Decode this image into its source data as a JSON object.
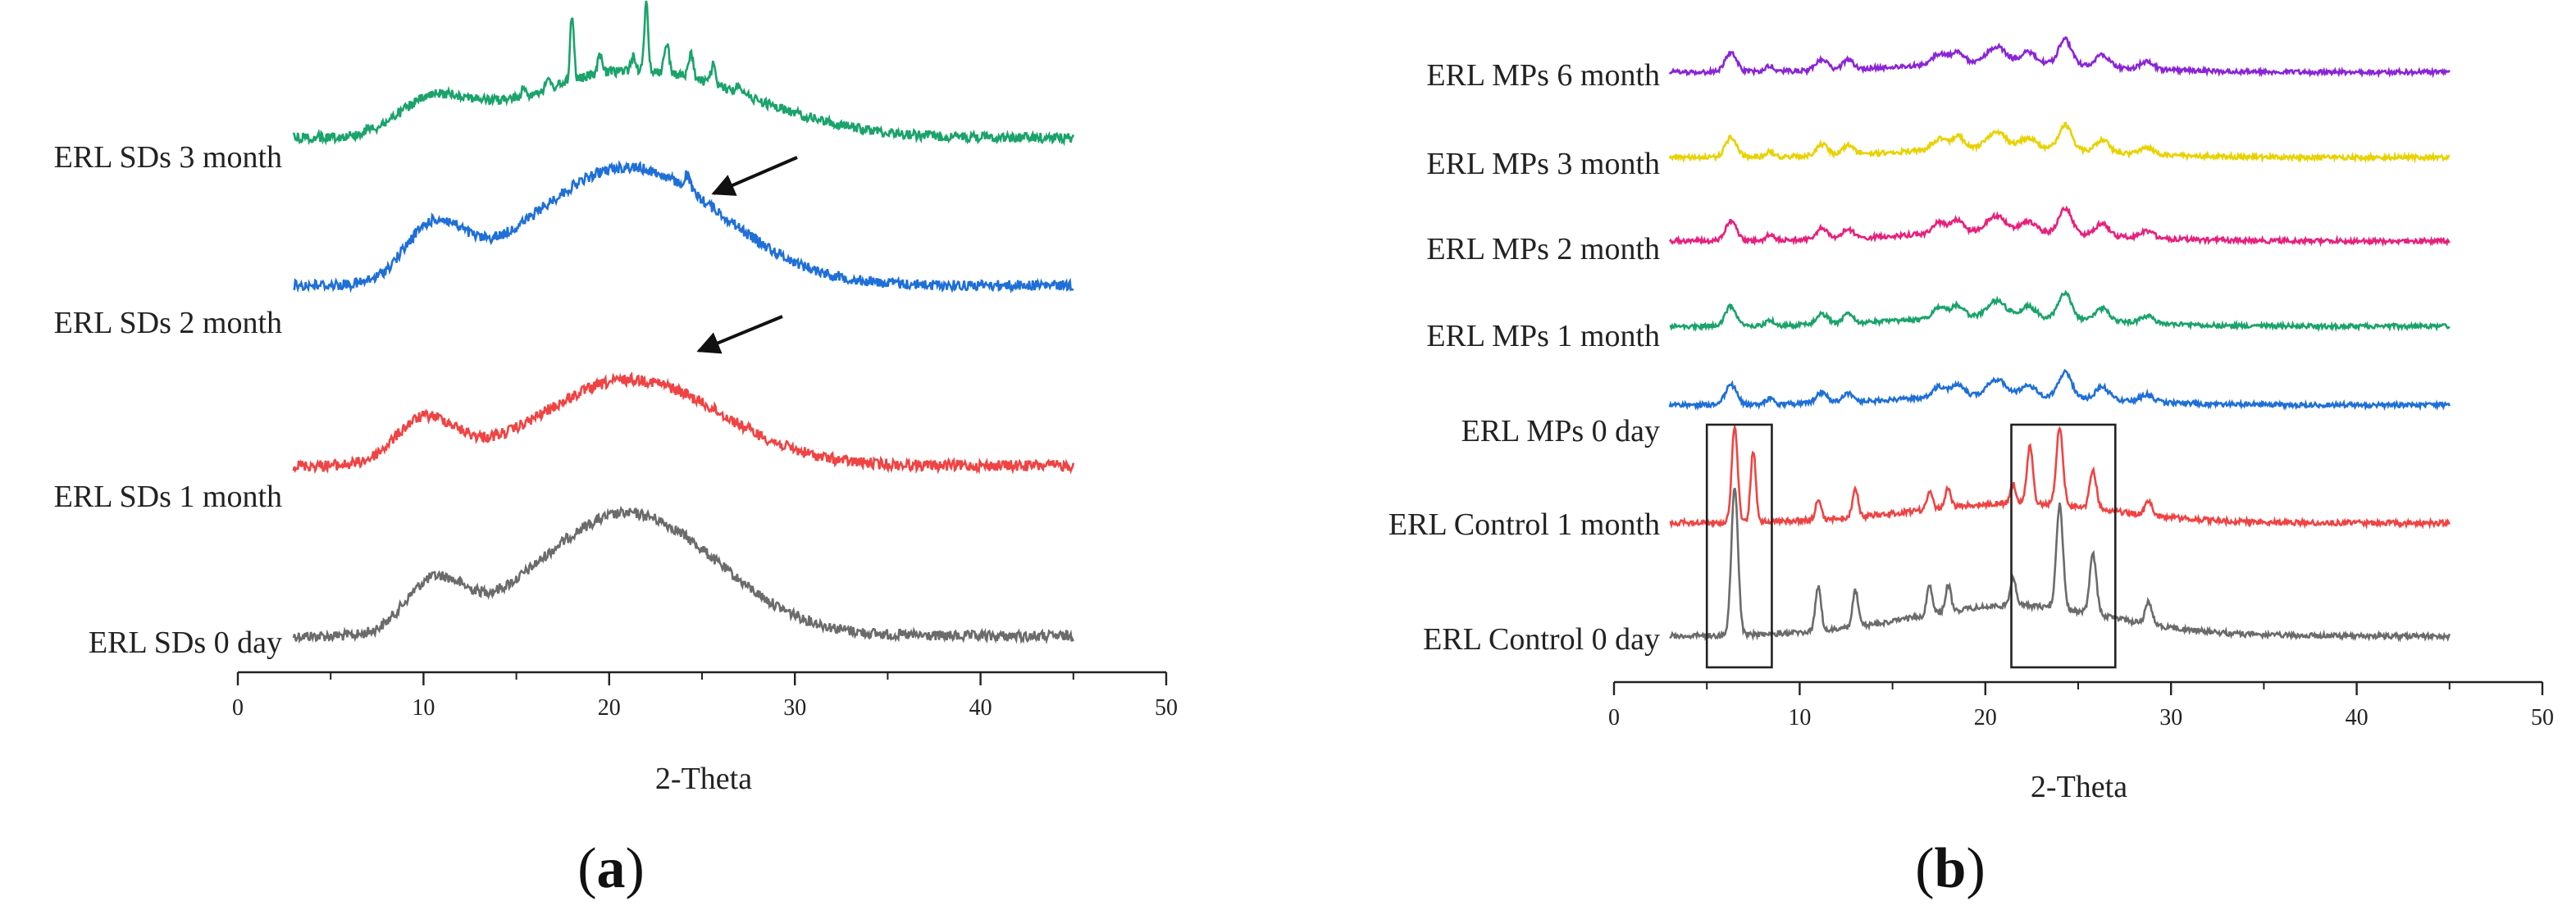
{
  "panels": {
    "a": {
      "letter": "a",
      "open": "(",
      "close": ")"
    },
    "b": {
      "letter": "b",
      "open": "(",
      "close": ")"
    }
  },
  "chart_data": [
    {
      "type": "line",
      "title": "",
      "xlabel": "2-Theta",
      "ylabel": "",
      "xlim": [
        0,
        50
      ],
      "xticks": [
        0,
        10,
        20,
        30,
        40,
        50
      ],
      "data_x_range": [
        3,
        45
      ],
      "series": [
        {
          "name": "ERL SDs 0 day",
          "color": "#6b6b6b",
          "profile": {
            "hump": [
              [
                10.5,
                1.6,
                0.4
              ],
              [
                21,
                4.8,
                1.0
              ]
            ],
            "peaks": []
          }
        },
        {
          "name": "ERL SDs 1 month",
          "color": "#f04343",
          "profile": {
            "hump": [
              [
                10,
                1.7,
                0.55
              ],
              [
                21.2,
                4.8,
                1.05
              ]
            ],
            "peaks": []
          },
          "annotation": "arrow at ~25"
        },
        {
          "name": "ERL SDs 2 month",
          "color": "#1f6fd8",
          "profile": {
            "hump": [
              [
                10.5,
                1.6,
                0.45
              ],
              [
                21,
                5.0,
                1.0
              ]
            ],
            "peaks": [
              [
                24.2,
                0.15,
                0.12
              ]
            ]
          },
          "annotation": "arrow at ~24.2"
        },
        {
          "name": "ERL SDs 3 month",
          "color": "#1aa36b",
          "profile": {
            "hump": [
              [
                10.5,
                2.0,
                0.25
              ],
              [
                21.5,
                6.0,
                0.55
              ]
            ],
            "peaks": [
              [
                7.1,
                0.12,
                0.05
              ],
              [
                15.4,
                0.12,
                0.06
              ],
              [
                16.7,
                0.12,
                0.06
              ],
              [
                18.0,
                0.1,
                0.55
              ],
              [
                19.5,
                0.12,
                0.15
              ],
              [
                21.3,
                0.12,
                0.12
              ],
              [
                22.0,
                0.1,
                0.55
              ],
              [
                23.1,
                0.12,
                0.25
              ],
              [
                24.4,
                0.12,
                0.2
              ],
              [
                25.6,
                0.12,
                0.15
              ],
              [
                27.0,
                0.15,
                0.08
              ]
            ]
          }
        }
      ]
    },
    {
      "type": "line",
      "title": "",
      "xlabel": "2-Theta",
      "ylabel": "",
      "xlim": [
        0,
        50
      ],
      "xticks": [
        0,
        10,
        20,
        30,
        40,
        50
      ],
      "data_x_range": [
        3,
        45
      ],
      "boxes_x": [
        [
          5,
          8.5
        ],
        [
          21.4,
          27
        ]
      ],
      "series": [
        {
          "name": "ERL Control 0 day",
          "color": "#6b6b6b",
          "profile": {
            "hump": [
              [
                22,
                5,
                0.15
              ]
            ],
            "peaks": [
              [
                6.5,
                0.18,
                1.0
              ],
              [
                11.0,
                0.15,
                0.3
              ],
              [
                13.0,
                0.15,
                0.25
              ],
              [
                17.0,
                0.15,
                0.2
              ],
              [
                18.0,
                0.15,
                0.18
              ],
              [
                21.5,
                0.15,
                0.2
              ],
              [
                24.0,
                0.18,
                0.7
              ],
              [
                25.8,
                0.18,
                0.4
              ],
              [
                28.8,
                0.18,
                0.15
              ]
            ]
          }
        },
        {
          "name": "ERL Control 1 month",
          "color": "#f04343",
          "profile": {
            "hump": [
              [
                22,
                5,
                0.15
              ]
            ],
            "peaks": [
              [
                6.5,
                0.16,
                1.0
              ],
              [
                7.5,
                0.14,
                0.75
              ],
              [
                11.0,
                0.15,
                0.2
              ],
              [
                13.0,
                0.15,
                0.3
              ],
              [
                17.0,
                0.15,
                0.18
              ],
              [
                18.0,
                0.15,
                0.2
              ],
              [
                21.5,
                0.15,
                0.2
              ],
              [
                22.4,
                0.16,
                0.6
              ],
              [
                24.0,
                0.18,
                0.8
              ],
              [
                25.8,
                0.18,
                0.4
              ],
              [
                28.8,
                0.18,
                0.15
              ]
            ]
          }
        },
        {
          "name": "ERL MPs 0 day",
          "color": "#1f6fd8",
          "profile": {
            "hump": [
              [
                21,
                5,
                0.2
              ]
            ],
            "peaks": [
              [
                6.3,
                0.3,
                0.55
              ],
              [
                8.4,
                0.2,
                0.15
              ],
              [
                11.2,
                0.3,
                0.3
              ],
              [
                12.6,
                0.3,
                0.25
              ],
              [
                17.5,
                0.35,
                0.3
              ],
              [
                18.5,
                0.35,
                0.35
              ],
              [
                20.6,
                0.5,
                0.45
              ],
              [
                22.3,
                0.4,
                0.3
              ],
              [
                24.3,
                0.35,
                0.7
              ],
              [
                26.3,
                0.35,
                0.35
              ],
              [
                28.7,
                0.35,
                0.2
              ]
            ]
          }
        },
        {
          "name": "ERL MPs 1 month",
          "color": "#1aa36b",
          "profile": {
            "hump": [
              [
                21,
                5,
                0.2
              ]
            ],
            "peaks": [
              [
                6.3,
                0.3,
                0.55
              ],
              [
                8.4,
                0.2,
                0.15
              ],
              [
                11.2,
                0.3,
                0.3
              ],
              [
                12.6,
                0.3,
                0.25
              ],
              [
                17.5,
                0.35,
                0.3
              ],
              [
                18.5,
                0.35,
                0.35
              ],
              [
                20.6,
                0.5,
                0.45
              ],
              [
                22.3,
                0.4,
                0.3
              ],
              [
                24.3,
                0.35,
                0.7
              ],
              [
                26.3,
                0.35,
                0.35
              ],
              [
                28.7,
                0.35,
                0.2
              ]
            ]
          }
        },
        {
          "name": "ERL MPs 2 month",
          "color": "#e8207c",
          "profile": {
            "hump": [
              [
                21,
                5,
                0.2
              ]
            ],
            "peaks": [
              [
                6.3,
                0.3,
                0.55
              ],
              [
                8.4,
                0.2,
                0.15
              ],
              [
                11.2,
                0.3,
                0.3
              ],
              [
                12.6,
                0.3,
                0.25
              ],
              [
                17.5,
                0.35,
                0.3
              ],
              [
                18.5,
                0.35,
                0.35
              ],
              [
                20.6,
                0.5,
                0.45
              ],
              [
                22.3,
                0.4,
                0.3
              ],
              [
                24.3,
                0.35,
                0.7
              ],
              [
                26.3,
                0.35,
                0.35
              ],
              [
                28.7,
                0.35,
                0.2
              ]
            ]
          }
        },
        {
          "name": "ERL MPs 3 month",
          "color": "#e8d200",
          "profile": {
            "hump": [
              [
                21,
                5,
                0.2
              ]
            ],
            "peaks": [
              [
                6.3,
                0.3,
                0.55
              ],
              [
                8.4,
                0.2,
                0.15
              ],
              [
                11.2,
                0.3,
                0.3
              ],
              [
                12.6,
                0.3,
                0.25
              ],
              [
                17.5,
                0.35,
                0.3
              ],
              [
                18.5,
                0.35,
                0.35
              ],
              [
                20.6,
                0.5,
                0.45
              ],
              [
                22.3,
                0.4,
                0.3
              ],
              [
                24.3,
                0.35,
                0.7
              ],
              [
                26.3,
                0.35,
                0.35
              ],
              [
                28.7,
                0.35,
                0.2
              ]
            ]
          }
        },
        {
          "name": "ERL MPs 6 month",
          "color": "#8a24d8",
          "profile": {
            "hump": [
              [
                21,
                5,
                0.2
              ]
            ],
            "peaks": [
              [
                6.3,
                0.3,
                0.55
              ],
              [
                8.4,
                0.2,
                0.15
              ],
              [
                11.2,
                0.3,
                0.3
              ],
              [
                12.6,
                0.3,
                0.25
              ],
              [
                17.5,
                0.35,
                0.3
              ],
              [
                18.5,
                0.35,
                0.35
              ],
              [
                20.6,
                0.5,
                0.45
              ],
              [
                22.3,
                0.4,
                0.3
              ],
              [
                24.3,
                0.35,
                0.7
              ],
              [
                26.3,
                0.35,
                0.35
              ],
              [
                28.7,
                0.35,
                0.2
              ]
            ]
          }
        }
      ]
    }
  ]
}
